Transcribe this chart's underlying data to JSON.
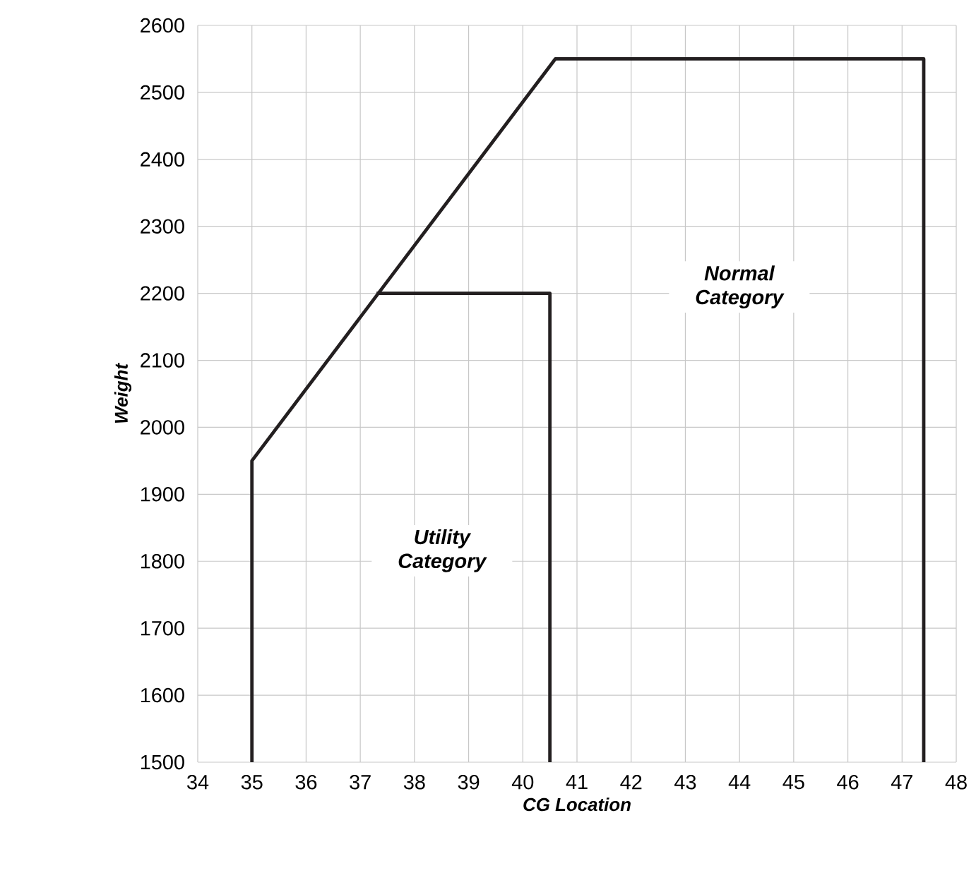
{
  "chart_data": {
    "type": "line",
    "xlabel": "CG Location",
    "ylabel": "Weight",
    "xlim": [
      34,
      48
    ],
    "xticks": [
      34,
      35,
      36,
      37,
      38,
      39,
      40,
      41,
      42,
      43,
      44,
      45,
      46,
      47,
      48
    ],
    "ylim": [
      1500,
      2600
    ],
    "yticks": [
      1500,
      1600,
      1700,
      1800,
      1900,
      2000,
      2100,
      2200,
      2300,
      2400,
      2500,
      2600
    ],
    "grid": true,
    "marker": "none",
    "line_style": "solid",
    "series": [
      {
        "color": "#231f20",
        "x": [
          35,
          35,
          40.6,
          47.4,
          47.4
        ],
        "values": [
          1500,
          1950,
          2550,
          2550,
          1500
        ]
      },
      {
        "color": "#231f20",
        "x": [
          37.3,
          40.5,
          40.5
        ],
        "values": [
          2200,
          2200,
          1500
        ]
      }
    ],
    "annotations": [
      "Normal Category",
      "Utility Category"
    ]
  }
}
